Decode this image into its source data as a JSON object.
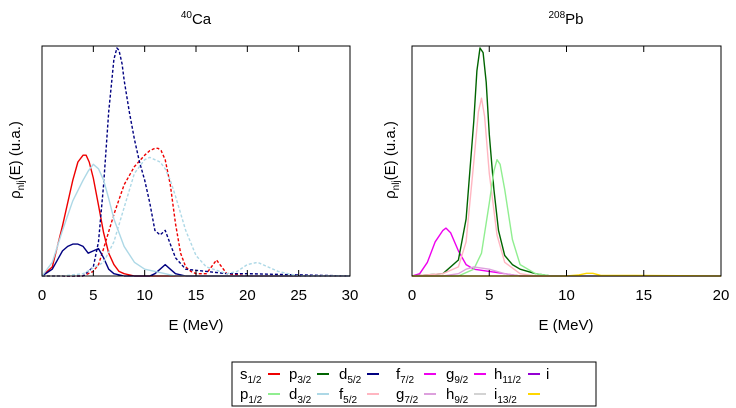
{
  "chart_data": [
    {
      "type": "line",
      "title": "⁴⁰Ca",
      "title_parts": {
        "sup": "40",
        "main": "Ca"
      },
      "xlabel": "E (MeV)",
      "ylabel_parts": {
        "main": "ρ",
        "sub": "nlj",
        "tail": "(E) (u.a.)"
      },
      "xlim": [
        0,
        30
      ],
      "ylim": [
        0,
        1
      ],
      "y_tick_labels": false,
      "x_ticks": [
        "0",
        "5",
        "10",
        "15",
        "20",
        "25",
        "30"
      ],
      "series": [
        {
          "name": "s1/2",
          "color": "#ee0000",
          "style": "solid",
          "x": [
            0,
            1,
            2,
            3,
            3.5,
            4,
            4.3,
            4.6,
            5,
            5.5,
            6,
            6.5,
            7,
            7.5,
            8,
            9,
            10,
            12,
            15,
            30
          ],
          "y": [
            0.0,
            0.04,
            0.22,
            0.42,
            0.5,
            0.53,
            0.53,
            0.5,
            0.43,
            0.31,
            0.19,
            0.1,
            0.05,
            0.02,
            0.01,
            0.0,
            0.0,
            0.0,
            0.0,
            0.0
          ]
        },
        {
          "name": "p1/2",
          "color": "#ee0000",
          "style": "dashed",
          "x": [
            0,
            2,
            3,
            4,
            5,
            5.5,
            6,
            7,
            8,
            9,
            10,
            10.5,
            11,
            11.3,
            11.6,
            12,
            12.5,
            13,
            13.5,
            14,
            14.5,
            15,
            16,
            16.5,
            17,
            17.5,
            18,
            20,
            30
          ],
          "y": [
            0.0,
            0.0,
            0.0,
            0.0,
            0.02,
            0.05,
            0.12,
            0.27,
            0.4,
            0.48,
            0.53,
            0.55,
            0.56,
            0.56,
            0.55,
            0.51,
            0.4,
            0.23,
            0.1,
            0.04,
            0.02,
            0.01,
            0.01,
            0.04,
            0.07,
            0.04,
            0.01,
            0.0,
            0.0
          ]
        },
        {
          "name": "d5/2",
          "color": "#000080",
          "style": "solid",
          "x": [
            0,
            1,
            2,
            2.5,
            3,
            3.5,
            4,
            4.5,
            5,
            5.5,
            6,
            6.5,
            7,
            8,
            9,
            10,
            10.5,
            11,
            11.5,
            12,
            12.5,
            13,
            14,
            16,
            30
          ],
          "y": [
            0.0,
            0.03,
            0.11,
            0.13,
            0.14,
            0.14,
            0.13,
            0.1,
            0.11,
            0.12,
            0.08,
            0.03,
            0.01,
            0.0,
            0.0,
            0.0,
            0.0,
            0.01,
            0.03,
            0.05,
            0.03,
            0.01,
            0.0,
            0.0,
            0.0
          ]
        },
        {
          "name": "d3/2",
          "color": "#000080",
          "style": "dashed",
          "x": [
            0,
            3,
            4,
            5,
            5.5,
            6,
            6.5,
            7,
            7.3,
            7.5,
            7.8,
            8,
            8.5,
            9,
            9.5,
            10,
            10.5,
            11,
            11.5,
            12,
            12.5,
            13,
            14,
            16,
            18,
            20,
            30
          ],
          "y": [
            0.0,
            0.0,
            0.0,
            0.04,
            0.15,
            0.4,
            0.72,
            0.95,
            1.0,
            0.99,
            0.93,
            0.86,
            0.72,
            0.6,
            0.5,
            0.42,
            0.32,
            0.2,
            0.18,
            0.2,
            0.14,
            0.08,
            0.03,
            0.02,
            0.01,
            0.01,
            0.0
          ]
        },
        {
          "name": "f7/2",
          "color": "#add8e6",
          "style": "solid",
          "x": [
            0,
            1,
            2,
            3,
            4,
            4.5,
            5,
            5.5,
            6,
            6.5,
            7,
            8,
            9,
            10,
            11,
            12,
            13,
            15,
            30
          ],
          "y": [
            0.0,
            0.06,
            0.2,
            0.33,
            0.42,
            0.46,
            0.49,
            0.47,
            0.42,
            0.34,
            0.25,
            0.13,
            0.06,
            0.03,
            0.02,
            0.01,
            0.0,
            0.0,
            0.0
          ]
        },
        {
          "name": "f5/2",
          "color": "#add8e6",
          "style": "dashed",
          "x": [
            0,
            2,
            4,
            6,
            7,
            8,
            9,
            10,
            10.5,
            11,
            11.5,
            12,
            12.5,
            13,
            14,
            15,
            16,
            18,
            19,
            20,
            21,
            22,
            23,
            25,
            30
          ],
          "y": [
            0.0,
            0.0,
            0.01,
            0.06,
            0.15,
            0.3,
            0.45,
            0.51,
            0.52,
            0.51,
            0.5,
            0.47,
            0.42,
            0.35,
            0.2,
            0.09,
            0.04,
            0.01,
            0.02,
            0.05,
            0.06,
            0.04,
            0.02,
            0.0,
            0.0
          ]
        }
      ]
    },
    {
      "type": "line",
      "title": "²⁰⁸Pb",
      "title_parts": {
        "sup": "208",
        "main": "Pb"
      },
      "xlabel": "E (MeV)",
      "ylabel_parts": {
        "main": "ρ",
        "sub": "nlj",
        "tail": "(E) (u.a.)"
      },
      "xlim": [
        0,
        20
      ],
      "ylim": [
        0,
        1
      ],
      "y_tick_labels": false,
      "x_ticks": [
        "0",
        "5",
        "10",
        "15",
        "20"
      ],
      "series": [
        {
          "name": "g9/2",
          "color": "#ee00ee",
          "style": "solid",
          "x": [
            0,
            0.5,
            1,
            1.5,
            2,
            2.2,
            2.5,
            3,
            3.5,
            4,
            5,
            6,
            7,
            8,
            20
          ],
          "y": [
            0.0,
            0.01,
            0.06,
            0.15,
            0.2,
            0.21,
            0.19,
            0.11,
            0.05,
            0.03,
            0.02,
            0.01,
            0.0,
            0.0,
            0.0
          ]
        },
        {
          "name": "p3/2",
          "color": "#006400",
          "style": "solid",
          "x": [
            0,
            2,
            3,
            3.5,
            4,
            4.2,
            4.4,
            4.6,
            4.8,
            5,
            5.3,
            5.6,
            6,
            6.5,
            7,
            8,
            9,
            20
          ],
          "y": [
            0.0,
            0.01,
            0.07,
            0.25,
            0.68,
            0.9,
            1.0,
            0.98,
            0.85,
            0.62,
            0.38,
            0.2,
            0.09,
            0.05,
            0.03,
            0.01,
            0.0,
            0.0
          ]
        },
        {
          "name": "g7/2",
          "color": "#ffb6c1",
          "style": "solid",
          "x": [
            0,
            2,
            3,
            3.5,
            4,
            4.3,
            4.5,
            4.7,
            5,
            5.5,
            6,
            7,
            8,
            20
          ],
          "y": [
            0.0,
            0.01,
            0.04,
            0.15,
            0.5,
            0.72,
            0.78,
            0.7,
            0.45,
            0.18,
            0.06,
            0.01,
            0.0,
            0.0
          ]
        },
        {
          "name": "p1/2",
          "color": "#90ee90",
          "style": "solid",
          "x": [
            0,
            3,
            4,
            4.5,
            5,
            5.3,
            5.5,
            5.7,
            6,
            6.5,
            7,
            8,
            9,
            20
          ],
          "y": [
            0.0,
            0.0,
            0.03,
            0.1,
            0.32,
            0.46,
            0.51,
            0.49,
            0.38,
            0.16,
            0.05,
            0.01,
            0.0,
            0.0
          ]
        },
        {
          "name": "h9/2",
          "color": "#dda0dd",
          "style": "solid",
          "x": [
            0,
            2,
            3,
            3.5,
            4,
            5,
            6,
            7,
            20
          ],
          "y": [
            0.0,
            0.0,
            0.01,
            0.03,
            0.04,
            0.03,
            0.01,
            0.0,
            0.0
          ]
        },
        {
          "name": "i13/2",
          "color": "#ffd700",
          "style": "solid",
          "x": [
            0,
            10,
            10.8,
            11.3,
            11.7,
            12.2,
            20
          ],
          "y": [
            0.0,
            0.0,
            0.005,
            0.012,
            0.012,
            0.003,
            0.0
          ]
        }
      ]
    }
  ],
  "legend": {
    "entries": [
      {
        "main": "s",
        "sub": "1/2",
        "color": "#ee0000"
      },
      {
        "main": "p",
        "sub": "3/2",
        "color": "#006400"
      },
      {
        "main": "d",
        "sub": "5/2",
        "color": "#000080"
      },
      {
        "main": "f",
        "sub": "7/2",
        "color": "#ee00ee"
      },
      {
        "main": "g",
        "sub": "9/2",
        "color": "#ee00ee"
      },
      {
        "main": "h",
        "sub": "11/2",
        "color": "#9400d3"
      },
      {
        "main": "i",
        "sub": "",
        "color": "#a9a9a9"
      },
      {
        "main": "p",
        "sub": "1/2",
        "color": "#90ee90"
      },
      {
        "main": "d",
        "sub": "3/2",
        "color": "#add8e6"
      },
      {
        "main": "f",
        "sub": "5/2",
        "color": "#ffb6c1"
      },
      {
        "main": "g",
        "sub": "7/2",
        "color": "#dda0dd"
      },
      {
        "main": "h",
        "sub": "9/2",
        "color": "#d3d3d3"
      },
      {
        "main": "i",
        "sub": "13/2",
        "color": "#ffd700"
      }
    ]
  }
}
